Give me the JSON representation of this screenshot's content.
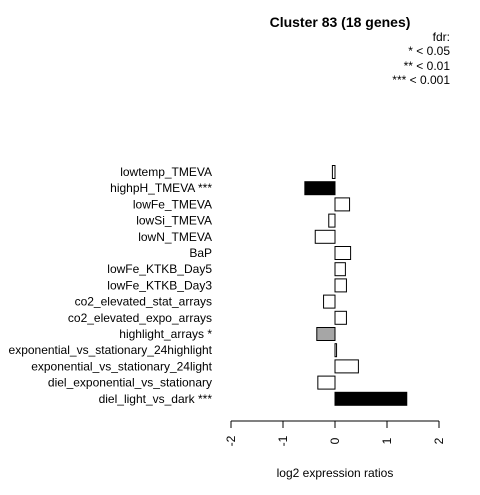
{
  "chart_data": {
    "type": "bar",
    "orientation": "horizontal",
    "title": "Cluster 83 (18 genes)",
    "xlabel": "log2 expression ratios",
    "xlim": [
      -2,
      2
    ],
    "xticks": [
      "-2",
      "-1",
      "0",
      "1",
      "2"
    ],
    "legend": {
      "title": "fdr:",
      "entries": [
        "* < 0.05",
        "** < 0.01",
        "*** < 0.001"
      ],
      "placement": "top-right"
    },
    "categories": [
      "lowtemp_TMEVA",
      "highpH_TMEVA ***",
      "lowFe_TMEVA",
      "lowSi_TMEVA",
      "lowN_TMEVA",
      "BaP",
      "lowFe_KTKB_Day5",
      "lowFe_KTKB_Day3",
      "co2_elevated_stat_arrays",
      "co2_elevated_expo_arrays",
      "highlight_arrays *",
      "exponential_vs_stationary_24highlight",
      "exponential_vs_stationary_24light",
      "diel_exponential_vs_stationary",
      "diel_light_vs_dark ***"
    ],
    "values": [
      -0.05,
      -0.58,
      0.28,
      -0.12,
      -0.38,
      0.3,
      0.2,
      0.22,
      -0.22,
      0.22,
      -0.35,
      0.03,
      0.45,
      -0.33,
      1.38
    ],
    "fills": [
      "#ffffff",
      "#000000",
      "#ffffff",
      "#ffffff",
      "#ffffff",
      "#ffffff",
      "#ffffff",
      "#ffffff",
      "#ffffff",
      "#ffffff",
      "#a6a6a6",
      "#ffffff",
      "#ffffff",
      "#ffffff",
      "#000000"
    ]
  }
}
